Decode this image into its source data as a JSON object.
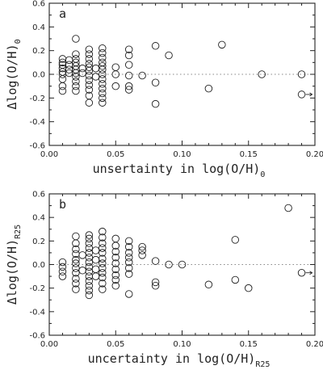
{
  "chart_data": [
    {
      "type": "scatter",
      "panel_label": "a",
      "xlabel": "unsertainty in log(O/H)",
      "xlabel_sub": "0",
      "ylabel": "Δlog(O/H)",
      "ylabel_sub": "0",
      "xlim": [
        0,
        0.2
      ],
      "ylim": [
        -0.6,
        0.6
      ],
      "xticks": [
        "0.00",
        "0.05",
        "0.10",
        "0.15",
        "0.20"
      ],
      "yticks": [
        "0.6",
        "0.4",
        "0.2",
        "0.0",
        "-0.2",
        "-0.4",
        "-0.6"
      ],
      "reference_line": 0,
      "points": [
        {
          "x": 0.01,
          "y": 0.13
        },
        {
          "x": 0.01,
          "y": 0.1
        },
        {
          "x": 0.01,
          "y": 0.08
        },
        {
          "x": 0.01,
          "y": 0.05
        },
        {
          "x": 0.01,
          "y": 0.02
        },
        {
          "x": 0.01,
          "y": 0.0
        },
        {
          "x": 0.01,
          "y": -0.04
        },
        {
          "x": 0.01,
          "y": -0.1
        },
        {
          "x": 0.01,
          "y": -0.14
        },
        {
          "x": 0.015,
          "y": 0.12
        },
        {
          "x": 0.015,
          "y": 0.08
        },
        {
          "x": 0.015,
          "y": 0.04
        },
        {
          "x": 0.015,
          "y": 0.01
        },
        {
          "x": 0.02,
          "y": 0.3
        },
        {
          "x": 0.02,
          "y": 0.17
        },
        {
          "x": 0.02,
          "y": 0.13
        },
        {
          "x": 0.02,
          "y": 0.1
        },
        {
          "x": 0.02,
          "y": 0.07
        },
        {
          "x": 0.02,
          "y": 0.04
        },
        {
          "x": 0.02,
          "y": 0.01
        },
        {
          "x": 0.02,
          "y": -0.02
        },
        {
          "x": 0.02,
          "y": -0.06
        },
        {
          "x": 0.02,
          "y": -0.1
        },
        {
          "x": 0.02,
          "y": -0.14
        },
        {
          "x": 0.025,
          "y": 0.05
        },
        {
          "x": 0.025,
          "y": 0.01
        },
        {
          "x": 0.03,
          "y": 0.21
        },
        {
          "x": 0.03,
          "y": 0.17
        },
        {
          "x": 0.03,
          "y": 0.13
        },
        {
          "x": 0.03,
          "y": 0.09
        },
        {
          "x": 0.03,
          "y": 0.06
        },
        {
          "x": 0.03,
          "y": 0.03
        },
        {
          "x": 0.03,
          "y": -0.01
        },
        {
          "x": 0.03,
          "y": -0.05
        },
        {
          "x": 0.03,
          "y": -0.09
        },
        {
          "x": 0.03,
          "y": -0.13
        },
        {
          "x": 0.03,
          "y": -0.18
        },
        {
          "x": 0.03,
          "y": -0.24
        },
        {
          "x": 0.035,
          "y": 0.05
        },
        {
          "x": 0.035,
          "y": -0.02
        },
        {
          "x": 0.04,
          "y": 0.22
        },
        {
          "x": 0.04,
          "y": 0.18
        },
        {
          "x": 0.04,
          "y": 0.14
        },
        {
          "x": 0.04,
          "y": 0.1
        },
        {
          "x": 0.04,
          "y": 0.07
        },
        {
          "x": 0.04,
          "y": 0.04
        },
        {
          "x": 0.04,
          "y": 0.0
        },
        {
          "x": 0.04,
          "y": -0.04
        },
        {
          "x": 0.04,
          "y": -0.08
        },
        {
          "x": 0.04,
          "y": -0.12
        },
        {
          "x": 0.04,
          "y": -0.16
        },
        {
          "x": 0.04,
          "y": -0.2
        },
        {
          "x": 0.04,
          "y": -0.24
        },
        {
          "x": 0.05,
          "y": 0.06
        },
        {
          "x": 0.05,
          "y": 0.0
        },
        {
          "x": 0.05,
          "y": -0.1
        },
        {
          "x": 0.06,
          "y": 0.21
        },
        {
          "x": 0.06,
          "y": 0.16
        },
        {
          "x": 0.06,
          "y": 0.08
        },
        {
          "x": 0.06,
          "y": -0.01
        },
        {
          "x": 0.06,
          "y": -0.1
        },
        {
          "x": 0.06,
          "y": -0.13
        },
        {
          "x": 0.07,
          "y": -0.01
        },
        {
          "x": 0.08,
          "y": 0.24
        },
        {
          "x": 0.08,
          "y": -0.07
        },
        {
          "x": 0.08,
          "y": -0.25
        },
        {
          "x": 0.09,
          "y": 0.16
        },
        {
          "x": 0.12,
          "y": -0.12
        },
        {
          "x": 0.13,
          "y": 0.25
        },
        {
          "x": 0.16,
          "y": 0.0
        },
        {
          "x": 0.19,
          "y": 0.0
        },
        {
          "x": 0.19,
          "y": -0.17,
          "arrow": true
        }
      ]
    },
    {
      "type": "scatter",
      "panel_label": "b",
      "xlabel": "uncertainty in log(O/H)",
      "xlabel_sub": "R25",
      "ylabel": "Δlog(O/H)",
      "ylabel_sub": "R25",
      "xlim": [
        0,
        0.2
      ],
      "ylim": [
        -0.6,
        0.6
      ],
      "xticks": [
        "0.00",
        "0.05",
        "0.10",
        "0.15",
        "0.20"
      ],
      "yticks": [
        "0.6",
        "0.4",
        "0.2",
        "0.0",
        "-0.2",
        "-0.4",
        "-0.6"
      ],
      "reference_line": 0,
      "points": [
        {
          "x": 0.01,
          "y": 0.02
        },
        {
          "x": 0.01,
          "y": -0.02
        },
        {
          "x": 0.01,
          "y": -0.06
        },
        {
          "x": 0.01,
          "y": -0.1
        },
        {
          "x": 0.02,
          "y": 0.24
        },
        {
          "x": 0.02,
          "y": 0.18
        },
        {
          "x": 0.02,
          "y": 0.13
        },
        {
          "x": 0.02,
          "y": 0.09
        },
        {
          "x": 0.02,
          "y": 0.04
        },
        {
          "x": 0.02,
          "y": 0.01
        },
        {
          "x": 0.02,
          "y": -0.03
        },
        {
          "x": 0.02,
          "y": -0.07
        },
        {
          "x": 0.02,
          "y": -0.12
        },
        {
          "x": 0.02,
          "y": -0.16
        },
        {
          "x": 0.02,
          "y": -0.21
        },
        {
          "x": 0.025,
          "y": 0.08
        },
        {
          "x": 0.025,
          "y": -0.05
        },
        {
          "x": 0.03,
          "y": 0.25
        },
        {
          "x": 0.03,
          "y": 0.22
        },
        {
          "x": 0.03,
          "y": 0.18
        },
        {
          "x": 0.03,
          "y": 0.14
        },
        {
          "x": 0.03,
          "y": 0.1
        },
        {
          "x": 0.03,
          "y": 0.06
        },
        {
          "x": 0.03,
          "y": 0.02
        },
        {
          "x": 0.03,
          "y": -0.02
        },
        {
          "x": 0.03,
          "y": -0.06
        },
        {
          "x": 0.03,
          "y": -0.1
        },
        {
          "x": 0.03,
          "y": -0.14
        },
        {
          "x": 0.03,
          "y": -0.18
        },
        {
          "x": 0.03,
          "y": -0.22
        },
        {
          "x": 0.03,
          "y": -0.26
        },
        {
          "x": 0.035,
          "y": 0.12
        },
        {
          "x": 0.035,
          "y": 0.04
        },
        {
          "x": 0.035,
          "y": -0.04
        },
        {
          "x": 0.035,
          "y": -0.1
        },
        {
          "x": 0.04,
          "y": 0.28
        },
        {
          "x": 0.04,
          "y": 0.23
        },
        {
          "x": 0.04,
          "y": 0.18
        },
        {
          "x": 0.04,
          "y": 0.14
        },
        {
          "x": 0.04,
          "y": 0.1
        },
        {
          "x": 0.04,
          "y": 0.05
        },
        {
          "x": 0.04,
          "y": 0.01
        },
        {
          "x": 0.04,
          "y": -0.03
        },
        {
          "x": 0.04,
          "y": -0.07
        },
        {
          "x": 0.04,
          "y": -0.11
        },
        {
          "x": 0.04,
          "y": -0.16
        },
        {
          "x": 0.04,
          "y": -0.21
        },
        {
          "x": 0.05,
          "y": 0.22
        },
        {
          "x": 0.05,
          "y": 0.16
        },
        {
          "x": 0.05,
          "y": 0.11
        },
        {
          "x": 0.05,
          "y": 0.06
        },
        {
          "x": 0.05,
          "y": 0.01
        },
        {
          "x": 0.05,
          "y": -0.04
        },
        {
          "x": 0.05,
          "y": -0.09
        },
        {
          "x": 0.05,
          "y": -0.13
        },
        {
          "x": 0.05,
          "y": -0.18
        },
        {
          "x": 0.06,
          "y": 0.2
        },
        {
          "x": 0.06,
          "y": 0.15
        },
        {
          "x": 0.06,
          "y": 0.1
        },
        {
          "x": 0.06,
          "y": 0.06
        },
        {
          "x": 0.06,
          "y": 0.02
        },
        {
          "x": 0.06,
          "y": -0.03
        },
        {
          "x": 0.06,
          "y": -0.08
        },
        {
          "x": 0.06,
          "y": -0.25
        },
        {
          "x": 0.07,
          "y": 0.15
        },
        {
          "x": 0.07,
          "y": 0.12
        },
        {
          "x": 0.07,
          "y": 0.08
        },
        {
          "x": 0.08,
          "y": 0.03
        },
        {
          "x": 0.08,
          "y": -0.15
        },
        {
          "x": 0.08,
          "y": -0.18
        },
        {
          "x": 0.09,
          "y": 0.0
        },
        {
          "x": 0.1,
          "y": 0.0
        },
        {
          "x": 0.12,
          "y": -0.17
        },
        {
          "x": 0.14,
          "y": 0.21
        },
        {
          "x": 0.14,
          "y": -0.13
        },
        {
          "x": 0.15,
          "y": -0.2
        },
        {
          "x": 0.18,
          "y": 0.48
        },
        {
          "x": 0.19,
          "y": -0.07,
          "arrow": true
        }
      ]
    }
  ]
}
